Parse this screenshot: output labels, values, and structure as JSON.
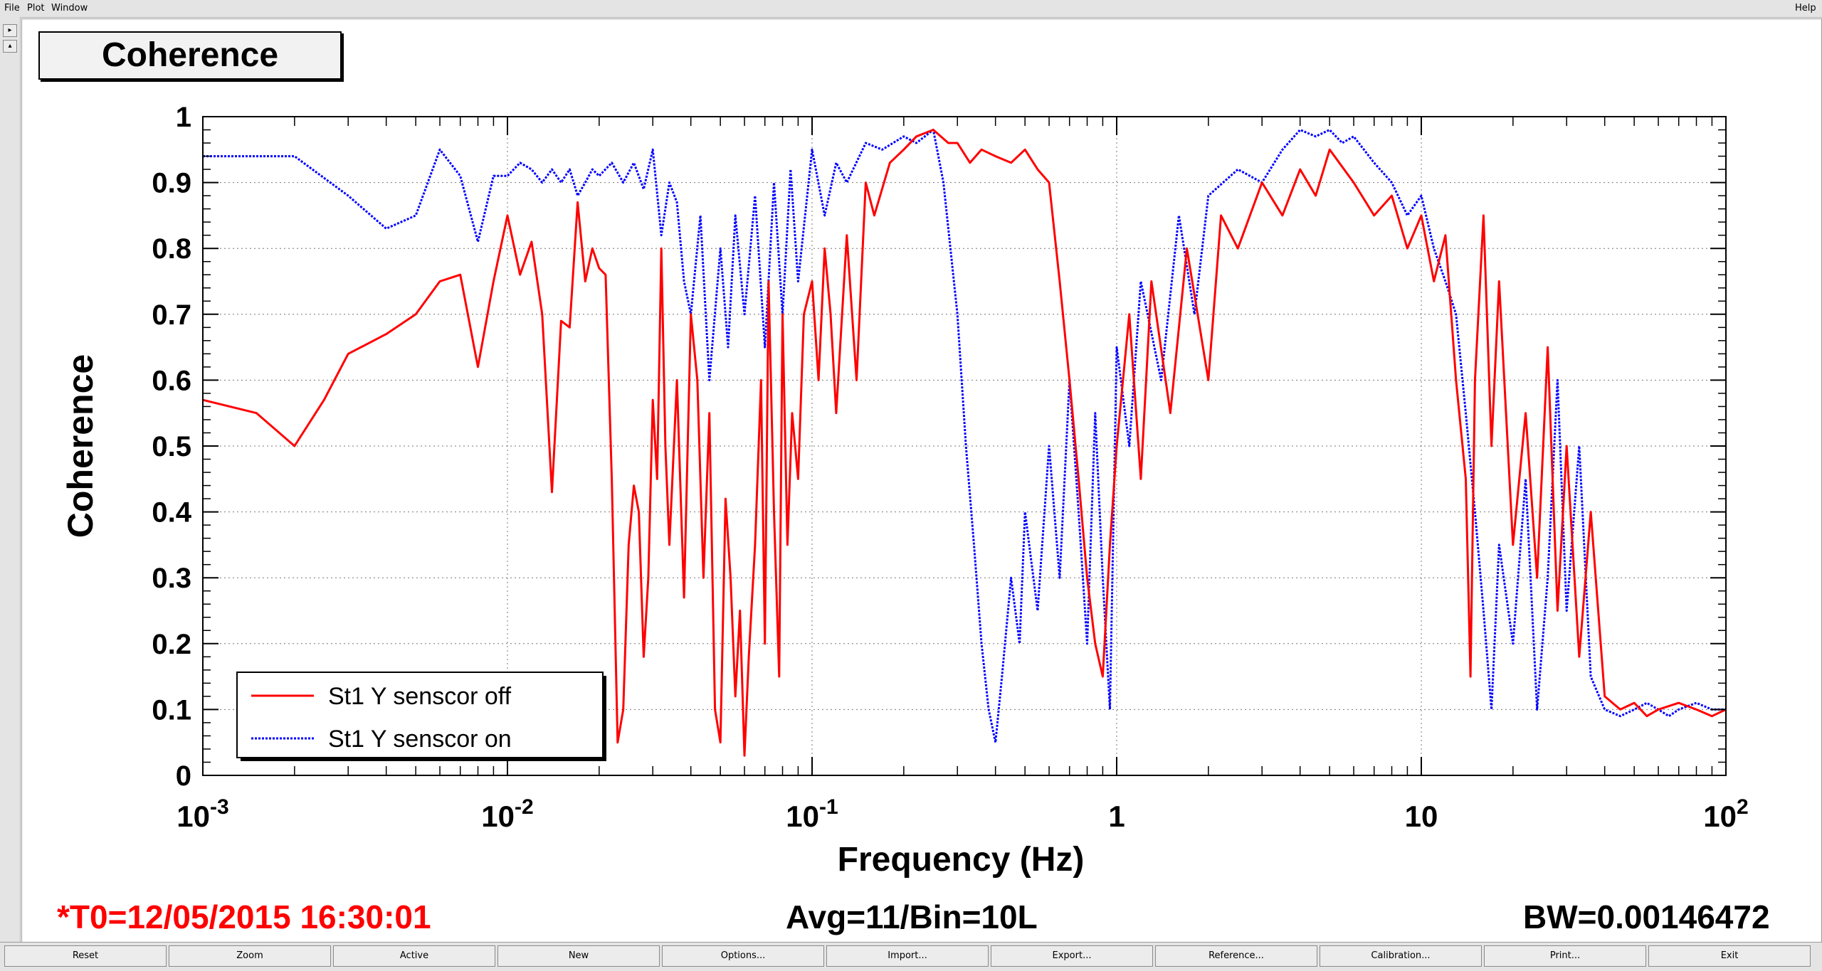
{
  "menu": {
    "file": "File",
    "plot": "Plot",
    "window": "Window",
    "help": "Help"
  },
  "gutter": {
    "btn1": "▸",
    "btn2": "▴"
  },
  "title_box": "Coherence",
  "footer": {
    "t0": "*T0=12/05/2015 16:30:01",
    "avg": "Avg=11/Bin=10L",
    "bw": "BW=0.00146472",
    "t0_color": "#ff0000"
  },
  "buttons": [
    "Reset",
    "Zoom",
    "Active",
    "New",
    "Options...",
    "Import...",
    "Export...",
    "Reference...",
    "Calibration...",
    "Print...",
    "Exit"
  ],
  "chart_data": {
    "type": "line",
    "title": "",
    "xlabel": "Frequency (Hz)",
    "ylabel": "Coherence",
    "xscale": "log",
    "xlim": [
      0.001,
      100
    ],
    "ylim": [
      0,
      1
    ],
    "x_ticks": [
      {
        "value": 0.001,
        "base": "10",
        "exp": "-3"
      },
      {
        "value": 0.01,
        "base": "10",
        "exp": "-2"
      },
      {
        "value": 0.1,
        "base": "10",
        "exp": "-1"
      },
      {
        "value": 1,
        "base": "1",
        "exp": ""
      },
      {
        "value": 10,
        "base": "10",
        "exp": ""
      },
      {
        "value": 100,
        "base": "10",
        "exp": "2"
      }
    ],
    "y_ticks": [
      "0",
      "0.1",
      "0.2",
      "0.3",
      "0.4",
      "0.5",
      "0.6",
      "0.7",
      "0.8",
      "0.9",
      "1"
    ],
    "grid": true,
    "legend_position": "bottom-left",
    "series": [
      {
        "name": "St1 Y senscor off",
        "color": "#ff0000",
        "style": "solid",
        "x": [
          0.001,
          0.0015,
          0.002,
          0.0025,
          0.003,
          0.004,
          0.005,
          0.006,
          0.007,
          0.008,
          0.009,
          0.01,
          0.011,
          0.012,
          0.013,
          0.014,
          0.015,
          0.016,
          0.017,
          0.018,
          0.019,
          0.02,
          0.021,
          0.022,
          0.023,
          0.024,
          0.025,
          0.026,
          0.027,
          0.028,
          0.029,
          0.03,
          0.031,
          0.032,
          0.033,
          0.034,
          0.036,
          0.038,
          0.04,
          0.042,
          0.044,
          0.046,
          0.048,
          0.05,
          0.052,
          0.054,
          0.056,
          0.058,
          0.06,
          0.062,
          0.065,
          0.068,
          0.07,
          0.072,
          0.075,
          0.078,
          0.08,
          0.083,
          0.086,
          0.09,
          0.094,
          0.1,
          0.105,
          0.11,
          0.115,
          0.12,
          0.13,
          0.14,
          0.15,
          0.16,
          0.18,
          0.2,
          0.22,
          0.25,
          0.28,
          0.3,
          0.33,
          0.36,
          0.4,
          0.45,
          0.5,
          0.55,
          0.6,
          0.65,
          0.7,
          0.75,
          0.8,
          0.85,
          0.9,
          0.95,
          1.0,
          1.1,
          1.2,
          1.3,
          1.5,
          1.7,
          2.0,
          2.2,
          2.5,
          3,
          3.5,
          4,
          4.5,
          5,
          6,
          7,
          8,
          9,
          10,
          11,
          12,
          13,
          14,
          14.5,
          15,
          16,
          17,
          18,
          20,
          22,
          24,
          26,
          28,
          30,
          33,
          36,
          40,
          45,
          50,
          55,
          60,
          70,
          80,
          90,
          100
        ],
        "y": [
          0.57,
          0.55,
          0.5,
          0.57,
          0.64,
          0.67,
          0.7,
          0.75,
          0.76,
          0.62,
          0.75,
          0.85,
          0.76,
          0.81,
          0.7,
          0.43,
          0.69,
          0.68,
          0.87,
          0.75,
          0.8,
          0.77,
          0.76,
          0.45,
          0.05,
          0.1,
          0.35,
          0.44,
          0.4,
          0.18,
          0.3,
          0.57,
          0.45,
          0.8,
          0.5,
          0.35,
          0.6,
          0.27,
          0.7,
          0.6,
          0.3,
          0.55,
          0.1,
          0.05,
          0.42,
          0.3,
          0.12,
          0.25,
          0.03,
          0.18,
          0.35,
          0.6,
          0.2,
          0.75,
          0.4,
          0.15,
          0.7,
          0.35,
          0.55,
          0.45,
          0.7,
          0.75,
          0.6,
          0.8,
          0.7,
          0.55,
          0.82,
          0.6,
          0.9,
          0.85,
          0.93,
          0.95,
          0.97,
          0.98,
          0.96,
          0.96,
          0.93,
          0.95,
          0.94,
          0.93,
          0.95,
          0.92,
          0.9,
          0.75,
          0.6,
          0.45,
          0.3,
          0.2,
          0.15,
          0.35,
          0.5,
          0.7,
          0.45,
          0.75,
          0.55,
          0.8,
          0.6,
          0.85,
          0.8,
          0.9,
          0.85,
          0.92,
          0.88,
          0.95,
          0.9,
          0.85,
          0.88,
          0.8,
          0.85,
          0.75,
          0.82,
          0.6,
          0.45,
          0.15,
          0.6,
          0.85,
          0.5,
          0.75,
          0.35,
          0.55,
          0.3,
          0.65,
          0.25,
          0.5,
          0.18,
          0.4,
          0.12,
          0.1,
          0.11,
          0.09,
          0.1,
          0.11,
          0.1,
          0.09,
          0.1
        ]
      },
      {
        "name": "St1 Y senscor on",
        "color": "#0000ff",
        "style": "dotted",
        "x": [
          0.001,
          0.0015,
          0.002,
          0.003,
          0.004,
          0.005,
          0.006,
          0.007,
          0.008,
          0.009,
          0.01,
          0.011,
          0.012,
          0.013,
          0.014,
          0.015,
          0.016,
          0.017,
          0.018,
          0.019,
          0.02,
          0.022,
          0.024,
          0.026,
          0.028,
          0.03,
          0.032,
          0.034,
          0.036,
          0.038,
          0.04,
          0.043,
          0.046,
          0.05,
          0.053,
          0.056,
          0.06,
          0.065,
          0.07,
          0.075,
          0.08,
          0.085,
          0.09,
          0.1,
          0.11,
          0.12,
          0.13,
          0.15,
          0.17,
          0.2,
          0.22,
          0.25,
          0.27,
          0.3,
          0.32,
          0.34,
          0.36,
          0.38,
          0.4,
          0.42,
          0.45,
          0.48,
          0.5,
          0.55,
          0.6,
          0.65,
          0.7,
          0.75,
          0.8,
          0.85,
          0.9,
          0.95,
          1.0,
          1.1,
          1.2,
          1.4,
          1.6,
          1.8,
          2.0,
          2.5,
          3,
          3.5,
          4,
          4.5,
          5,
          5.5,
          6,
          7,
          8,
          9,
          10,
          11,
          12,
          13,
          14,
          15,
          16,
          17,
          18,
          20,
          22,
          24,
          26,
          28,
          30,
          33,
          36,
          40,
          45,
          50,
          55,
          60,
          65,
          70,
          80,
          90,
          100
        ],
        "y": [
          0.94,
          0.94,
          0.94,
          0.88,
          0.83,
          0.85,
          0.95,
          0.91,
          0.81,
          0.91,
          0.91,
          0.93,
          0.92,
          0.9,
          0.92,
          0.9,
          0.92,
          0.88,
          0.9,
          0.92,
          0.91,
          0.93,
          0.9,
          0.93,
          0.89,
          0.95,
          0.82,
          0.9,
          0.87,
          0.75,
          0.7,
          0.85,
          0.6,
          0.8,
          0.65,
          0.85,
          0.7,
          0.88,
          0.65,
          0.9,
          0.7,
          0.92,
          0.75,
          0.95,
          0.85,
          0.93,
          0.9,
          0.96,
          0.95,
          0.97,
          0.96,
          0.98,
          0.9,
          0.7,
          0.5,
          0.35,
          0.2,
          0.1,
          0.05,
          0.15,
          0.3,
          0.2,
          0.4,
          0.25,
          0.5,
          0.3,
          0.6,
          0.4,
          0.2,
          0.55,
          0.3,
          0.1,
          0.65,
          0.5,
          0.75,
          0.6,
          0.85,
          0.7,
          0.88,
          0.92,
          0.9,
          0.95,
          0.98,
          0.97,
          0.98,
          0.96,
          0.97,
          0.93,
          0.9,
          0.85,
          0.88,
          0.8,
          0.75,
          0.7,
          0.55,
          0.4,
          0.25,
          0.1,
          0.35,
          0.2,
          0.45,
          0.1,
          0.3,
          0.6,
          0.25,
          0.5,
          0.15,
          0.1,
          0.09,
          0.1,
          0.11,
          0.1,
          0.09,
          0.1,
          0.11,
          0.1,
          0.1
        ]
      }
    ]
  }
}
